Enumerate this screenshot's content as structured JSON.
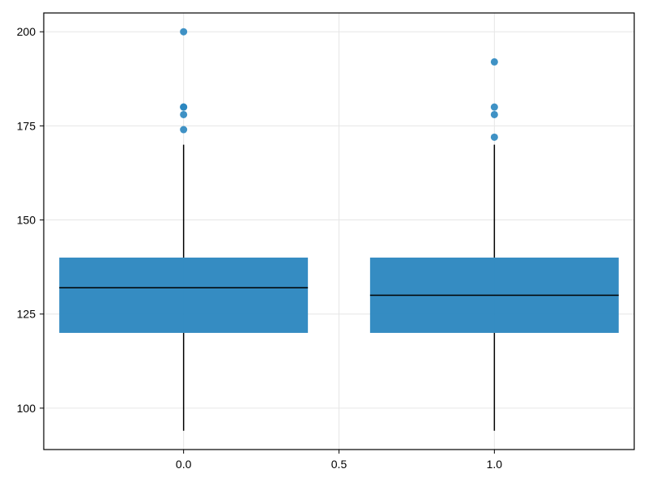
{
  "chart_data": {
    "type": "box",
    "xlim": [
      -0.45,
      1.45
    ],
    "ylim": [
      89,
      205
    ],
    "x_ticks": [
      0.0,
      0.5,
      1.0
    ],
    "x_tick_labels": [
      "0.0",
      "0.5",
      "1.0"
    ],
    "y_ticks": [
      100,
      125,
      150,
      175,
      200
    ],
    "y_tick_labels": [
      "100",
      "125",
      "150",
      "175",
      "200"
    ],
    "grid": true,
    "box_color": "#2a86bf",
    "box_width": 0.8,
    "boxes": [
      {
        "x": 0.0,
        "whisker_low": 94,
        "q1": 120,
        "median": 132,
        "q3": 140,
        "whisker_high": 170,
        "outliers": [
          174,
          178,
          180,
          180,
          200
        ]
      },
      {
        "x": 1.0,
        "whisker_low": 94,
        "q1": 120,
        "median": 130,
        "q3": 140,
        "whisker_high": 170,
        "outliers": [
          172,
          178,
          180,
          192
        ]
      }
    ]
  }
}
